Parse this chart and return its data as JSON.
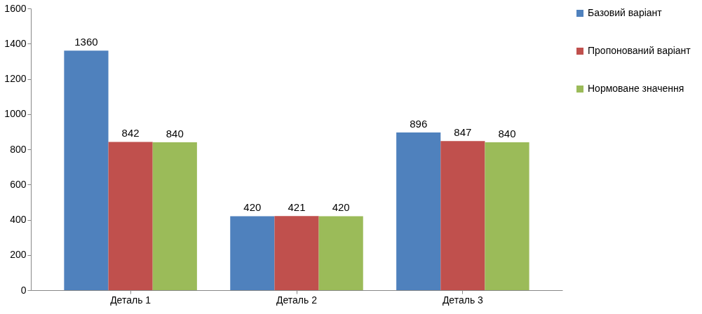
{
  "chart_data": {
    "type": "bar",
    "categories": [
      "Деталь 1",
      "Деталь 2",
      "Деталь 3"
    ],
    "series": [
      {
        "name": "Базовий варіант",
        "color": "#4f81bd",
        "values": [
          1360,
          420,
          896
        ]
      },
      {
        "name": "Пропонований варіант",
        "color": "#c0504d",
        "values": [
          842,
          421,
          847
        ]
      },
      {
        "name": "Нормоване значення",
        "color": "#9bbb59",
        "values": [
          840,
          420,
          840
        ]
      }
    ],
    "ylim": [
      0,
      1600
    ],
    "yticks": [
      0,
      200,
      400,
      600,
      800,
      1000,
      1200,
      1400,
      1600
    ],
    "grid": false,
    "legend": "right",
    "data_labels": true
  }
}
